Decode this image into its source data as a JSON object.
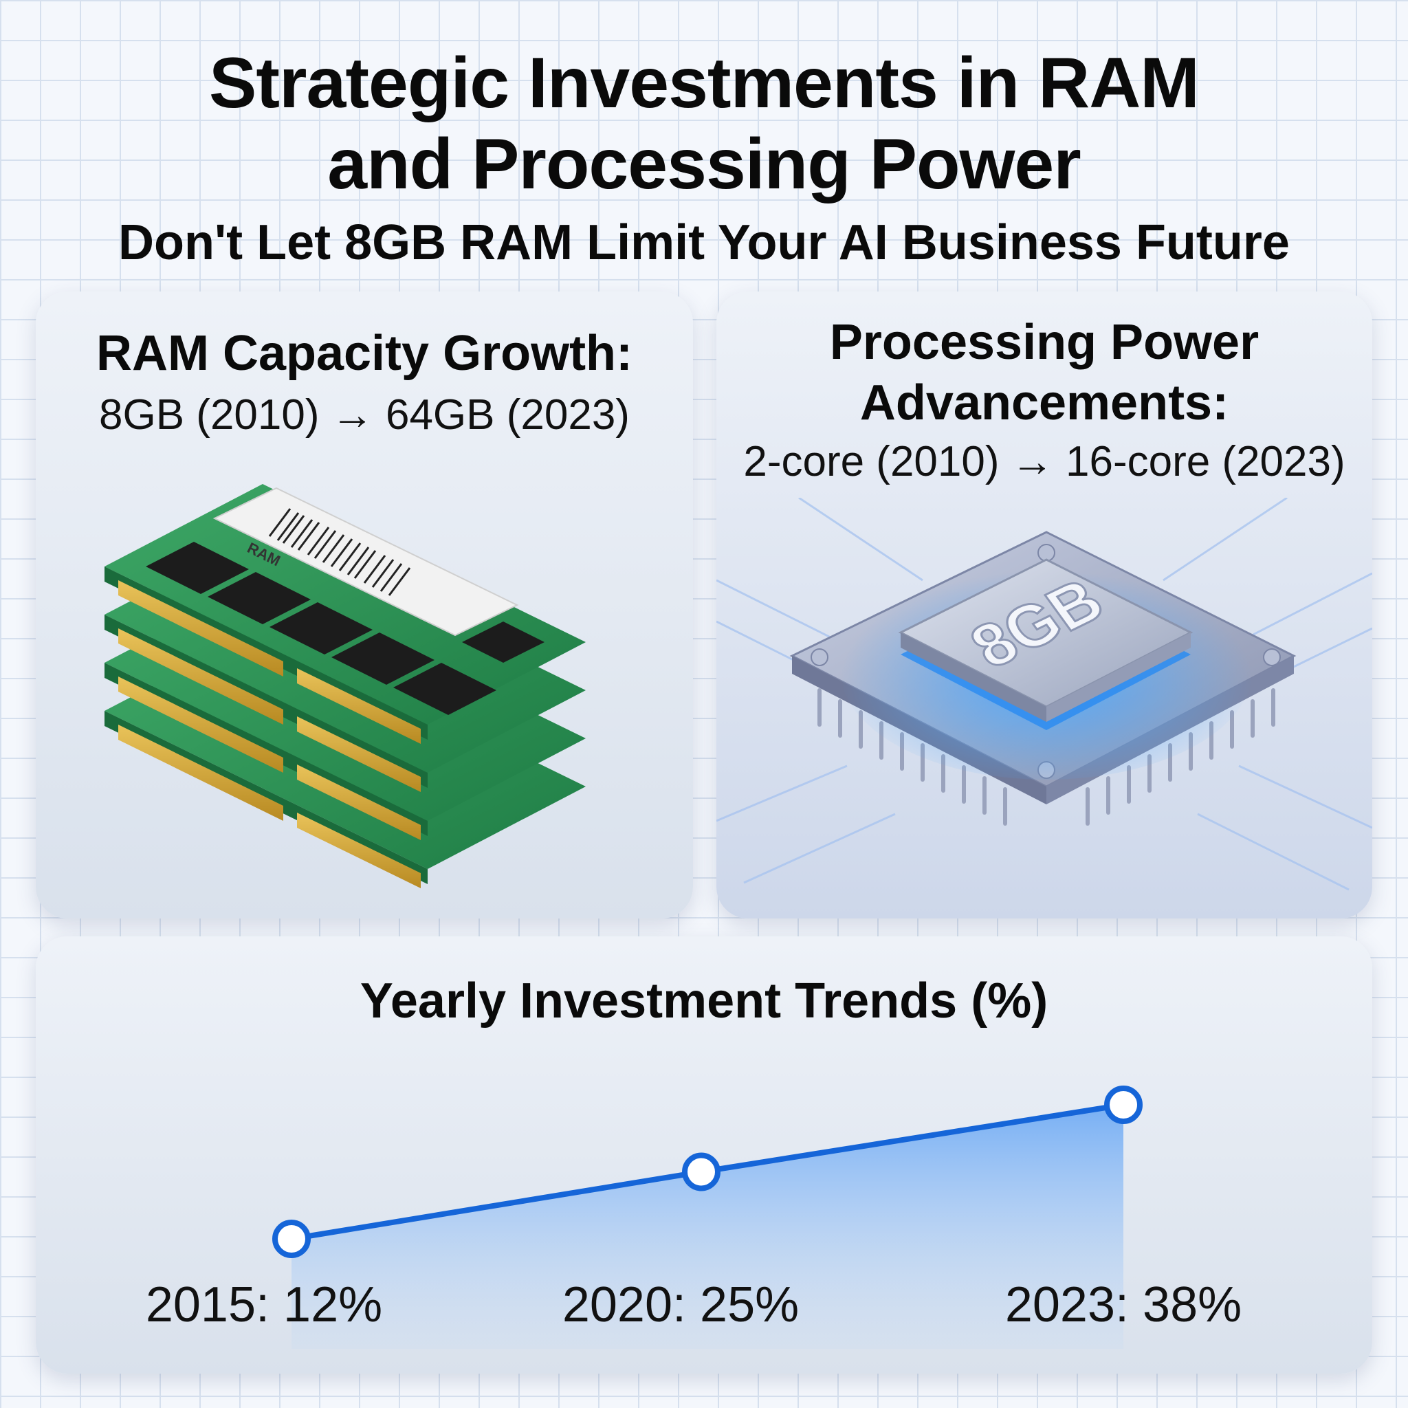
{
  "header": {
    "title_line1": "Strategic Investments in RAM",
    "title_line2": "and Processing Power",
    "subtitle": "Don't Let 8GB RAM Limit Your AI Business Future"
  },
  "ram_card": {
    "heading": "RAM Capacity Growth:",
    "detail": "8GB (2010) → 64GB (2023)",
    "module_label": "RAM"
  },
  "cpu_card": {
    "heading_line1": "Processing Power",
    "heading_line2": "Advancements:",
    "detail": "2-core (2010) → 16-core (2023)",
    "chip_label": "8GB"
  },
  "chart_data": {
    "type": "line",
    "title": "Yearly Investment Trends (%)",
    "x": [
      2015,
      2020,
      2023
    ],
    "values": [
      12,
      25,
      38
    ],
    "labels": [
      "2015: 12%",
      "2020: 25%",
      "2023: 38%"
    ],
    "colors": {
      "line": "#1565d8",
      "fill": "#7fb4f5"
    }
  }
}
